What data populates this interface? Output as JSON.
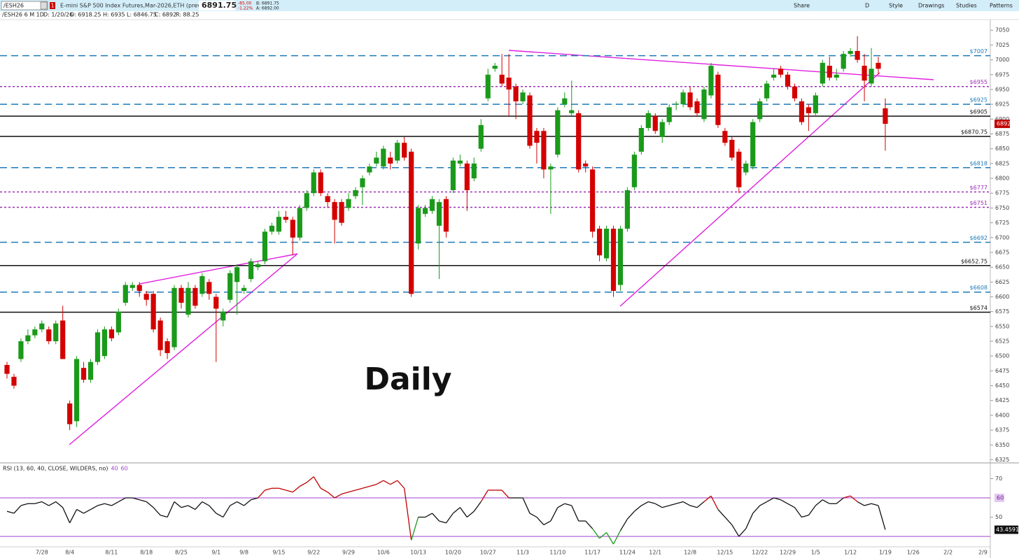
{
  "header": {
    "symbol": "/ESH26",
    "badge": "1",
    "description": "E-mini S&P 500 Index Futures,Mar-2026,ETH (prev. /ESH6)",
    "last": "6891.75",
    "change": "-85.00",
    "change_pct": "-1.22%",
    "bid": "B: 6891.75",
    "ask": "A: 6892.00",
    "tools": [
      "Share",
      "D",
      "Style",
      "Drawings",
      "Studies",
      "Patterns"
    ],
    "info": [
      "/ESH26 6 M 1D",
      "D: 1/20/26",
      "O: 6918.25",
      "H: 6935",
      "L: 6846.75",
      "C: 6892",
      "R: 88.25"
    ]
  },
  "chart_data": [
    {
      "type": "candlestick",
      "annotation": "Daily",
      "up_color": "#1a9a1a",
      "down_color": "#d40000",
      "categories": [
        null,
        null,
        null,
        null,
        null,
        "7/28",
        null,
        null,
        null,
        "8/4",
        null,
        null,
        null,
        null,
        null,
        "8/11",
        null,
        null,
        null,
        null,
        "8/18",
        null,
        null,
        null,
        null,
        "8/25",
        null,
        null,
        null,
        null,
        "9/1",
        null,
        null,
        null,
        "9/8",
        null,
        null,
        null,
        null,
        "9/15",
        null,
        null,
        null,
        null,
        "9/22",
        null,
        null,
        null,
        null,
        "9/29",
        null,
        null,
        null,
        null,
        "10/6",
        null,
        null,
        null,
        null,
        "10/13",
        null,
        null,
        null,
        null,
        "10/20",
        null,
        null,
        null,
        null,
        "10/27",
        null,
        null,
        null,
        null,
        "11/3",
        null,
        null,
        null,
        null,
        "11/10",
        null,
        null,
        null,
        null,
        "11/17",
        null,
        null,
        null,
        null,
        "11/24",
        null,
        null,
        null,
        "12/1",
        null,
        null,
        null,
        null,
        "12/8",
        null,
        null,
        null,
        null,
        "12/15",
        null,
        null,
        null,
        null,
        "12/22",
        null,
        null,
        null,
        "12/29",
        null,
        null,
        null,
        "1/5",
        null,
        null,
        null,
        null,
        "1/12",
        null,
        null,
        null,
        null,
        "1/19",
        null,
        null,
        null,
        "1/26",
        null,
        null,
        null,
        null,
        "2/2",
        null,
        null,
        null,
        null,
        "2/9"
      ],
      "open": [
        6485,
        6465,
        6495,
        6525,
        6535,
        6545,
        6545,
        6525,
        6560,
        6420,
        6390,
        6480,
        6460,
        6490,
        6500,
        6545,
        6540,
        6590,
        6615,
        6620,
        6605,
        6605,
        6560,
        6525,
        6515,
        6615,
        6570,
        6615,
        6605,
        6625,
        6600,
        6560,
        6595,
        6625,
        6610,
        6630,
        6650,
        6660,
        6710,
        6710,
        6735,
        6730,
        6700,
        6750,
        6775,
        6810,
        6770,
        6760,
        6760,
        6750,
        6770,
        6785,
        6810,
        6825,
        6820,
        6835,
        6830,
        6860,
        6845,
        6690,
        6740,
        6745,
        6720,
        6765,
        6780,
        6825,
        6825,
        6800,
        6850,
        6935,
        6985,
        6975,
        6970,
        6955,
        6930,
        6940,
        6880,
        6880,
        6815,
        6840,
        6925,
        6910,
        6910,
        6825,
        6815,
        6715,
        6665,
        6715,
        6620,
        6715,
        6785,
        6845,
        6885,
        6905,
        6870,
        6895,
        6925,
        6925,
        6945,
        6930,
        6900,
        6940,
        6975,
        6880,
        6865,
        6845,
        6810,
        6820,
        6900,
        6935,
        6970,
        6985,
        6975,
        6955,
        6930,
        6920,
        6910,
        6960,
        6990,
        6970,
        6985,
        7010,
        7015,
        6990,
        6960,
        6995,
        6918.25,
        null,
        null,
        null,
        null,
        null,
        null,
        null,
        null,
        null,
        null,
        null,
        null,
        null,
        null
      ],
      "high": [
        6490,
        6470,
        6530,
        6545,
        6550,
        6560,
        6550,
        6560,
        6585,
        6425,
        6500,
        6490,
        6495,
        6545,
        6550,
        6550,
        6580,
        6625,
        6625,
        6625,
        6610,
        6610,
        6565,
        6530,
        6620,
        6620,
        6625,
        6620,
        6640,
        6630,
        6605,
        6580,
        6645,
        6655,
        6620,
        6665,
        6660,
        6715,
        6725,
        6745,
        6745,
        6735,
        6755,
        6780,
        6815,
        6815,
        6775,
        6765,
        6765,
        6775,
        6785,
        6805,
        6825,
        6845,
        6855,
        6845,
        6865,
        6870,
        6850,
        6755,
        6755,
        6770,
        6765,
        6770,
        6835,
        6840,
        6830,
        6835,
        6900,
        6985,
        6995,
        7010,
        7010,
        6960,
        6950,
        6945,
        6885,
        6885,
        6825,
        6920,
        6945,
        6965,
        6915,
        6830,
        6820,
        6720,
        6720,
        6720,
        6720,
        6785,
        6845,
        6890,
        6915,
        6910,
        6900,
        6925,
        6930,
        6950,
        6955,
        6935,
        6955,
        6995,
        6980,
        6885,
        6870,
        6850,
        6830,
        6900,
        6935,
        6965,
        6985,
        6990,
        6980,
        6960,
        6935,
        6925,
        6945,
        7000,
        7005,
        6985,
        7015,
        7020,
        7040,
        7010,
        7020,
        7005,
        6935,
        null,
        null,
        null,
        null,
        null,
        null,
        null,
        null,
        null,
        null,
        null,
        null,
        null,
        null
      ],
      "low": [
        6462,
        6445,
        6490,
        6520,
        6530,
        6540,
        6520,
        6520,
        6495,
        6375,
        6380,
        6455,
        6455,
        6485,
        6495,
        6525,
        6535,
        6585,
        6610,
        6600,
        6585,
        6540,
        6500,
        6495,
        6510,
        6580,
        6565,
        6580,
        6600,
        6595,
        6490,
        6550,
        6590,
        6570,
        6605,
        6625,
        6645,
        6655,
        6705,
        6705,
        6725,
        6670,
        6695,
        6745,
        6770,
        6770,
        6750,
        6690,
        6720,
        6745,
        6765,
        6755,
        6805,
        6820,
        6815,
        6815,
        6825,
        6830,
        6600,
        6680,
        6735,
        6740,
        6630,
        6700,
        6775,
        6820,
        6745,
        6795,
        6845,
        6930,
        6980,
        6955,
        6905,
        6900,
        6925,
        6850,
        6825,
        6800,
        6740,
        6835,
        6920,
        6905,
        6810,
        6810,
        6700,
        6660,
        6660,
        6600,
        6610,
        6710,
        6780,
        6840,
        6880,
        6875,
        6860,
        6890,
        6915,
        6920,
        6915,
        6905,
        6895,
        6935,
        6885,
        6855,
        6830,
        6775,
        6805,
        6815,
        6895,
        6930,
        6965,
        6970,
        6950,
        6930,
        6890,
        6880,
        6905,
        6955,
        6965,
        6965,
        6980,
        7005,
        6995,
        6930,
        6955,
        6975,
        6846.75,
        null,
        null,
        null,
        null,
        null,
        null,
        null,
        null,
        null,
        null,
        null,
        null,
        null,
        null
      ],
      "close": [
        6470,
        6450,
        6525,
        6535,
        6545,
        6555,
        6525,
        6555,
        6495,
        6385,
        6495,
        6460,
        6490,
        6540,
        6545,
        6530,
        6575,
        6620,
        6620,
        6610,
        6595,
        6545,
        6510,
        6505,
        6615,
        6590,
        6615,
        6585,
        6635,
        6605,
        6580,
        6575,
        6640,
        6650,
        6615,
        6660,
        6655,
        6710,
        6720,
        6735,
        6730,
        6700,
        6750,
        6775,
        6810,
        6775,
        6760,
        6730,
        6725,
        6765,
        6780,
        6800,
        6820,
        6835,
        6850,
        6825,
        6860,
        6835,
        6605,
        6750,
        6750,
        6765,
        6760,
        6710,
        6830,
        6830,
        6780,
        6825,
        6890,
        6975,
        6990,
        6960,
        6950,
        6930,
        6945,
        6855,
        6860,
        6815,
        6820,
        6915,
        6935,
        6915,
        6815,
        6820,
        6710,
        6670,
        6715,
        6610,
        6715,
        6780,
        6840,
        6885,
        6910,
        6880,
        6895,
        6920,
        6926,
        6945,
        6920,
        6910,
        6950,
        6990,
        6890,
        6860,
        6835,
        6785,
        6825,
        6895,
        6930,
        6960,
        6975,
        6975,
        6955,
        6935,
        6895,
        6910,
        6940,
        6995,
        6970,
        6975,
        7010,
        7015,
        7000,
        6965,
        6985,
        6985,
        6892,
        null,
        null,
        null,
        null,
        null,
        null,
        null,
        null,
        null,
        null,
        null,
        null,
        null,
        null
      ],
      "ylim": [
        6322,
        7068
      ],
      "yticks": [
        6325,
        6350,
        6375,
        6400,
        6425,
        6450,
        6475,
        6500,
        6525,
        6550,
        6575,
        6600,
        6625,
        6650,
        6675,
        6700,
        6725,
        6750,
        6775,
        6800,
        6825,
        6850,
        6875,
        6900,
        6925,
        6950,
        6975,
        7000,
        7025,
        7050
      ],
      "levels": [
        {
          "value": 7007,
          "label": "$7007",
          "color": "#1f7ab8",
          "style": "dashed"
        },
        {
          "value": 6955,
          "label": "$6955",
          "color": "#9a2fb5",
          "style": "dotted"
        },
        {
          "value": 6925,
          "label": "$6925",
          "color": "#1f7ab8",
          "style": "dashed"
        },
        {
          "value": 6905,
          "label": "$6905",
          "color": "#111111",
          "style": "solid"
        },
        {
          "value": 6870.75,
          "label": "$6870.75",
          "color": "#111111",
          "style": "solid"
        },
        {
          "value": 6818,
          "label": "$6818",
          "color": "#1f7ab8",
          "style": "dashed"
        },
        {
          "value": 6777,
          "label": "$6777",
          "color": "#9a2fb5",
          "style": "dotted"
        },
        {
          "value": 6751,
          "label": "$6751",
          "color": "#9a2fb5",
          "style": "dotted"
        },
        {
          "value": 6692,
          "label": "$6692",
          "color": "#1f7ab8",
          "style": "dashed"
        },
        {
          "value": 6652.75,
          "label": "$6652.75",
          "color": "#111111",
          "style": "solid"
        },
        {
          "value": 6608,
          "label": "$6608",
          "color": "#1f7ab8",
          "style": "dashed"
        },
        {
          "value": 6574,
          "label": "$6574",
          "color": "#111111",
          "style": "solid"
        }
      ]
    },
    {
      "type": "line",
      "legend": "RSI (13, 60, 40, CLOSE, WILDERS, no)",
      "color": "#111111",
      "upper": 60,
      "lower": 40,
      "band_color": "#a040d0",
      "upper_color": "#c00000",
      "lower_color": "#1a9a1a",
      "values": [
        53,
        52,
        56,
        57,
        57,
        58,
        56,
        58,
        55,
        47,
        54,
        52,
        54,
        56,
        57,
        56,
        58,
        60,
        60,
        59,
        58,
        55,
        51,
        50,
        58,
        55,
        56,
        54,
        58,
        56,
        52,
        50,
        56,
        58,
        56,
        59,
        60,
        64,
        65,
        65,
        64,
        63,
        66,
        68,
        71,
        65,
        63,
        60,
        62,
        63,
        64,
        65,
        66,
        67,
        69,
        67,
        69,
        65,
        38,
        50,
        50,
        52,
        48,
        47,
        52,
        55,
        50,
        53,
        58,
        64,
        64,
        64,
        60,
        60,
        60,
        52,
        50,
        46,
        48,
        55,
        57,
        56,
        48,
        48,
        44,
        39,
        42,
        36,
        43,
        49,
        53,
        56,
        58,
        57,
        55,
        56,
        57,
        58,
        56,
        55,
        58,
        61,
        54,
        50,
        46,
        40,
        44,
        52,
        56,
        58,
        60,
        59,
        57,
        55,
        50,
        51,
        56,
        59,
        57,
        57,
        60,
        61,
        58,
        56,
        57,
        56,
        43.4591,
        null,
        null,
        null,
        null,
        null,
        null,
        null,
        null,
        null,
        null,
        null,
        null,
        null,
        null
      ],
      "ylim": [
        33.5,
        77.8
      ],
      "yticks": [
        50,
        70
      ]
    }
  ]
}
